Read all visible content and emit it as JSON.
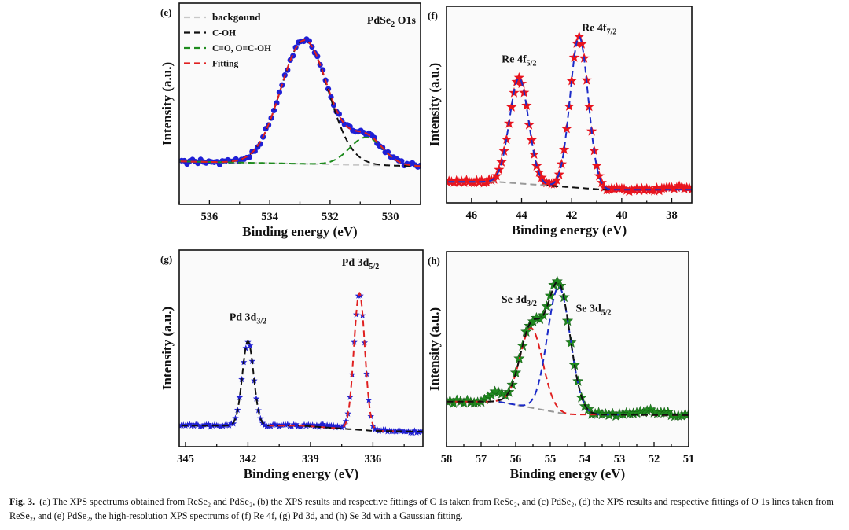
{
  "chart_data": [
    {
      "id": "e",
      "type": "line",
      "panel_label": "(e)",
      "title": "PdSe",
      "title_sub": "2",
      "title_tail": " O1s",
      "xlabel": "Binding energy (eV)",
      "ylabel": "Intensity (a.u.)",
      "xlim": [
        537,
        529
      ],
      "ylim": [
        -0.3,
        1.15
      ],
      "xticks": [
        536,
        534,
        532,
        530
      ],
      "marker": "circle",
      "marker_color": "#1f1fd6",
      "x_step": 0.09,
      "noise": 0.018,
      "background": [
        [
          537,
          0.01
        ],
        [
          532.3,
          -0.01
        ],
        [
          529,
          -0.025
        ]
      ],
      "legend": [
        {
          "label": "backgound",
          "color": "#c8c8c8"
        },
        {
          "label": "C-OH",
          "color": "#111111"
        },
        {
          "label": "C=O, O=C-OH",
          "color": "#1e8c1e"
        },
        {
          "label": "Fitting",
          "color": "#e02020"
        }
      ],
      "curves": [
        {
          "name": "backgound",
          "color": "#c8c8c8",
          "bg": true,
          "peaks": []
        },
        {
          "name": "C-OH",
          "color": "#111111",
          "bg": true,
          "peaks": [
            {
              "center": 532.85,
              "amp": 0.89,
              "sigma": 0.78
            }
          ]
        },
        {
          "name": "C=O, O=C-OH",
          "color": "#1e8c1e",
          "bg": true,
          "peaks": [
            {
              "center": 530.8,
              "amp": 0.2,
              "sigma": 0.55
            }
          ]
        },
        {
          "name": "Fitting",
          "color": "#e02020",
          "bg": true,
          "peaks": [
            {
              "center": 532.85,
              "amp": 0.89,
              "sigma": 0.78
            },
            {
              "center": 530.8,
              "amp": 0.2,
              "sigma": 0.55
            }
          ]
        }
      ],
      "annotations": []
    },
    {
      "id": "f",
      "type": "line",
      "panel_label": "(f)",
      "xlabel": "Binding energy (eV)",
      "ylabel": "Intensity (a.u.)",
      "xlim": [
        47,
        37.2
      ],
      "ylim": [
        -0.12,
        1.0
      ],
      "xticks": [
        46,
        44,
        42,
        40,
        38
      ],
      "marker": "star",
      "marker_color": "#e8141e",
      "x_step": 0.1,
      "noise": 0.01,
      "background": [
        [
          47,
          0.0
        ],
        [
          45,
          0.0
        ],
        [
          40.7,
          -0.045
        ],
        [
          37.2,
          -0.045
        ]
      ],
      "bumps": [
        {
          "center": 37.8,
          "amp": 0.012,
          "sigma": 0.4
        }
      ],
      "curves": [
        {
          "name": "background-left",
          "color": "#999999",
          "bg": true,
          "peaks": [],
          "range": [
            47,
            43
          ]
        },
        {
          "name": "background-right",
          "color": "#111111",
          "bg": true,
          "peaks": [],
          "range": [
            43,
            40.5
          ]
        },
        {
          "name": "fitting",
          "color": "#1c2bc8",
          "bg": true,
          "peaks": [
            {
              "center": 44.1,
              "amp": 0.6,
              "sigma": 0.38
            },
            {
              "center": 41.7,
              "amp": 0.86,
              "sigma": 0.36
            }
          ]
        }
      ],
      "annotations": [
        {
          "main": "Re 4f",
          "sub": "5/2",
          "at": [
            44.1,
            0.68
          ]
        },
        {
          "main": "Re 4f",
          "sub": "7/2",
          "at": [
            40.9,
            0.86
          ]
        }
      ]
    },
    {
      "id": "g",
      "type": "line",
      "panel_label": "(g)",
      "xlabel": "Binding energy (eV)",
      "ylabel": "Intensity (a.u.)",
      "xlim": [
        345.3,
        333.6
      ],
      "ylim": [
        -0.12,
        1.0
      ],
      "xticks": [
        345,
        342,
        339,
        336
      ],
      "marker": "star",
      "marker_color": "#2020d0",
      "x_step": 0.1,
      "noise": 0.008,
      "background": [
        [
          345.3,
          0.0
        ],
        [
          339.5,
          0.0
        ],
        [
          336,
          -0.03
        ],
        [
          333.6,
          -0.035
        ]
      ],
      "bumps": [
        {
          "center": 338.2,
          "amp": 0.012,
          "sigma": 0.4
        }
      ],
      "curves": [
        {
          "name": "Pd 3d3/2 fit",
          "color": "#111111",
          "bg": true,
          "peaks": [
            {
              "center": 342.0,
              "amp": 0.48,
              "sigma": 0.27
            }
          ],
          "range": [
            345.3,
            339.3
          ]
        },
        {
          "name": "background-mid",
          "color": "#e02020",
          "bg": true,
          "peaks": [],
          "range": [
            341.0,
            337.8
          ]
        },
        {
          "name": "Pd 3d5/2 fit",
          "color": "#e02020",
          "bg": true,
          "peaks": [
            {
              "center": 336.65,
              "amp": 0.78,
              "sigma": 0.26
            }
          ],
          "range": [
            338.0,
            335.0
          ]
        },
        {
          "name": "background-right",
          "color": "#111111",
          "bg": true,
          "peaks": [],
          "range": [
            339.3,
            333.6
          ]
        }
      ],
      "annotations": [
        {
          "main": "Pd 3d",
          "sub": "3/2",
          "at": [
            342.0,
            0.6
          ]
        },
        {
          "main": "Pd 3d",
          "sub": "5/2",
          "at": [
            336.6,
            0.91
          ]
        }
      ]
    },
    {
      "id": "h",
      "type": "line",
      "panel_label": "(h)",
      "xlabel": "Binding energy (eV)",
      "ylabel": "Intensity (a.u.)",
      "xlim": [
        58,
        51
      ],
      "ylim": [
        -0.3,
        1.0
      ],
      "xticks": [
        58,
        57,
        56,
        55,
        54,
        53,
        52,
        51
      ],
      "marker": "star",
      "marker_color": "#1f8a1f",
      "x_step": 0.1,
      "noise": 0.012,
      "background": [
        [
          58,
          0.0
        ],
        [
          56.5,
          0.0
        ],
        [
          54.5,
          -0.085
        ],
        [
          51,
          -0.09
        ]
      ],
      "bumps": [
        {
          "center": 56.6,
          "amp": 0.06,
          "sigma": 0.2
        },
        {
          "center": 52.0,
          "amp": 0.025,
          "sigma": 0.3
        }
      ],
      "curves": [
        {
          "name": "background",
          "color": "#999999",
          "bg": true,
          "peaks": [],
          "range": [
            57,
            54.6
          ]
        },
        {
          "name": "Se 3d3/2",
          "color": "#e02020",
          "bg": true,
          "peaks": [
            {
              "center": 55.55,
              "amp": 0.53,
              "sigma": 0.33
            }
          ]
        },
        {
          "name": "Se 3d5/2",
          "color": "#1c2bc8",
          "bg": true,
          "peaks": [
            {
              "center": 54.75,
              "amp": 0.84,
              "sigma": 0.33
            }
          ],
          "range": [
            56.5,
            53
          ]
        },
        {
          "name": "fitting",
          "color": "#111111",
          "bg": true,
          "peaks": [
            {
              "center": 55.55,
              "amp": 0.53,
              "sigma": 0.33
            },
            {
              "center": 54.75,
              "amp": 0.84,
              "sigma": 0.33
            }
          ]
        }
      ],
      "annotations": [
        {
          "main": "Se 3d",
          "sub": "3/2",
          "at": [
            55.9,
            0.66
          ]
        },
        {
          "main": "Se 3d",
          "sub": "5/2",
          "at": [
            53.75,
            0.6
          ]
        }
      ]
    }
  ],
  "caption": {
    "label": "Fig. 3.",
    "text": "(a) The XPS spectrums obtained from ReSe₂ and PdSe₂, (b) the XPS results and respective fittings of C 1s taken from ReSe₂, and (c) PdSe₂, (d) the XPS results and respective fittings of O 1s lines taken from ReSe₂, and (e) PdSe₂, the high-resolution XPS spectrums of (f) Re 4f, (g) Pd 3d, and (h) Se 3d with a Gaussian fitting."
  }
}
